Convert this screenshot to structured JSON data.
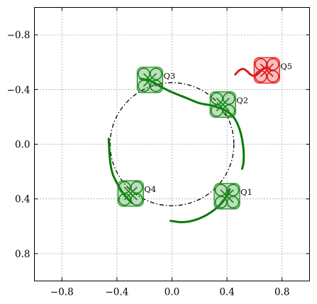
{
  "chart_data": {
    "type": "scatter",
    "title": "",
    "xlabel": "",
    "ylabel": "",
    "xlim": [
      -1.0,
      1.0
    ],
    "ylim": [
      -1.0,
      1.0
    ],
    "xticks": [
      -0.8,
      -0.4,
      0.0,
      0.4,
      0.8
    ],
    "yticks": [
      -0.8,
      -0.4,
      0.0,
      0.4,
      0.8
    ],
    "xtick_labels": [
      "−0.8",
      "−0.4",
      "0.0",
      "0.4",
      "0.8"
    ],
    "ytick_labels": [
      "0.8",
      "0.4",
      "0.0",
      "−0.4",
      "−0.8"
    ],
    "grid": true,
    "grid_style": "dotted",
    "reference_circle": {
      "center": [
        0.0,
        0.0
      ],
      "radius": 0.45,
      "style": "dash-dot",
      "color": "#000000"
    },
    "quadrotors": [
      {
        "label": "Q1",
        "x": 0.4,
        "y": -0.38,
        "color": "#1a8a1a"
      },
      {
        "label": "Q2",
        "x": 0.37,
        "y": 0.29,
        "color": "#1a8a1a"
      },
      {
        "label": "Q3",
        "x": -0.16,
        "y": 0.47,
        "color": "#1a8a1a"
      },
      {
        "label": "Q4",
        "x": -0.3,
        "y": -0.36,
        "color": "#1a8a1a"
      },
      {
        "label": "Q5",
        "x": 0.69,
        "y": 0.54,
        "color": "#e01c1c"
      }
    ],
    "trajectories": [
      {
        "color": "#0a7a0a",
        "points": [
          [
            -0.46,
            0.04
          ],
          [
            -0.45,
            -0.12
          ],
          [
            -0.43,
            -0.22
          ],
          [
            -0.38,
            -0.32
          ],
          [
            -0.34,
            -0.38
          ],
          [
            -0.29,
            -0.43
          ]
        ]
      },
      {
        "color": "#0a7a0a",
        "points": [
          [
            -0.01,
            -0.56
          ],
          [
            0.08,
            -0.57
          ],
          [
            0.18,
            -0.55
          ],
          [
            0.28,
            -0.5
          ],
          [
            0.37,
            -0.42
          ],
          [
            0.42,
            -0.33
          ]
        ]
      },
      {
        "color": "#0a7a0a",
        "points": [
          [
            -0.23,
            0.48
          ],
          [
            -0.15,
            0.46
          ],
          [
            -0.08,
            0.42
          ],
          [
            0.0,
            0.38
          ],
          [
            0.1,
            0.34
          ],
          [
            0.2,
            0.3
          ],
          [
            0.3,
            0.28
          ],
          [
            0.4,
            0.24
          ],
          [
            0.46,
            0.18
          ],
          [
            0.5,
            0.08
          ],
          [
            0.52,
            -0.04
          ],
          [
            0.52,
            -0.13
          ],
          [
            0.51,
            -0.18
          ]
        ]
      },
      {
        "color": "#e01c1c",
        "points": [
          [
            0.46,
            0.51
          ],
          [
            0.49,
            0.54
          ],
          [
            0.52,
            0.55
          ],
          [
            0.55,
            0.53
          ],
          [
            0.57,
            0.51
          ],
          [
            0.6,
            0.5
          ],
          [
            0.63,
            0.52
          ],
          [
            0.66,
            0.55
          ],
          [
            0.69,
            0.56
          ],
          [
            0.72,
            0.54
          ]
        ]
      }
    ]
  }
}
